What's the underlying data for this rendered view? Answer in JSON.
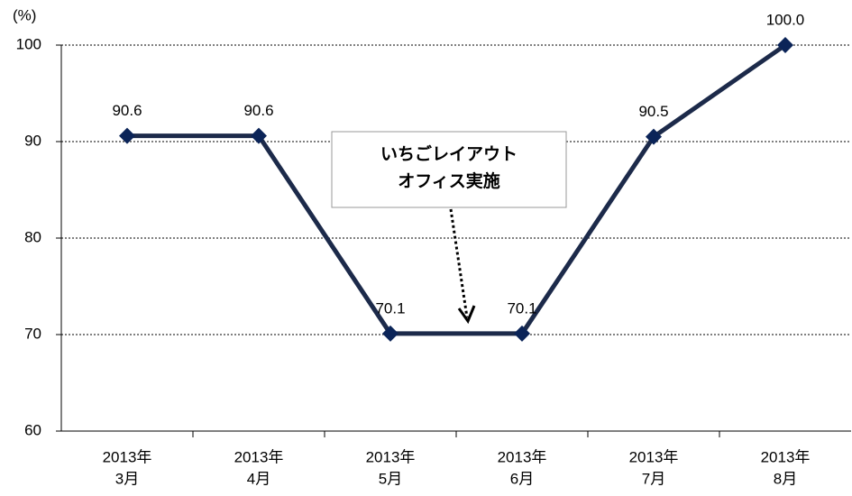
{
  "chart_data": {
    "type": "line",
    "y_unit": "(%)",
    "categories": [
      [
        "2013年",
        "3月"
      ],
      [
        "2013年",
        "4月"
      ],
      [
        "2013年",
        "5月"
      ],
      [
        "2013年",
        "6月"
      ],
      [
        "2013年",
        "7月"
      ],
      [
        "2013年",
        "8月"
      ]
    ],
    "series": [
      {
        "color": "#1c2a4a",
        "marker_color": "#0b2458",
        "values": [
          90.6,
          90.6,
          70.1,
          70.1,
          90.5,
          100
        ],
        "value_labels": [
          "90.6",
          "90.6",
          "70.1",
          "70.1",
          "90.5",
          "100.0"
        ]
      }
    ],
    "ylim": [
      60,
      100
    ],
    "yticks": [
      60,
      70,
      80,
      90,
      100
    ],
    "grid": true,
    "annotation": [
      "いちごレイアウト",
      "オフィス実施"
    ]
  }
}
